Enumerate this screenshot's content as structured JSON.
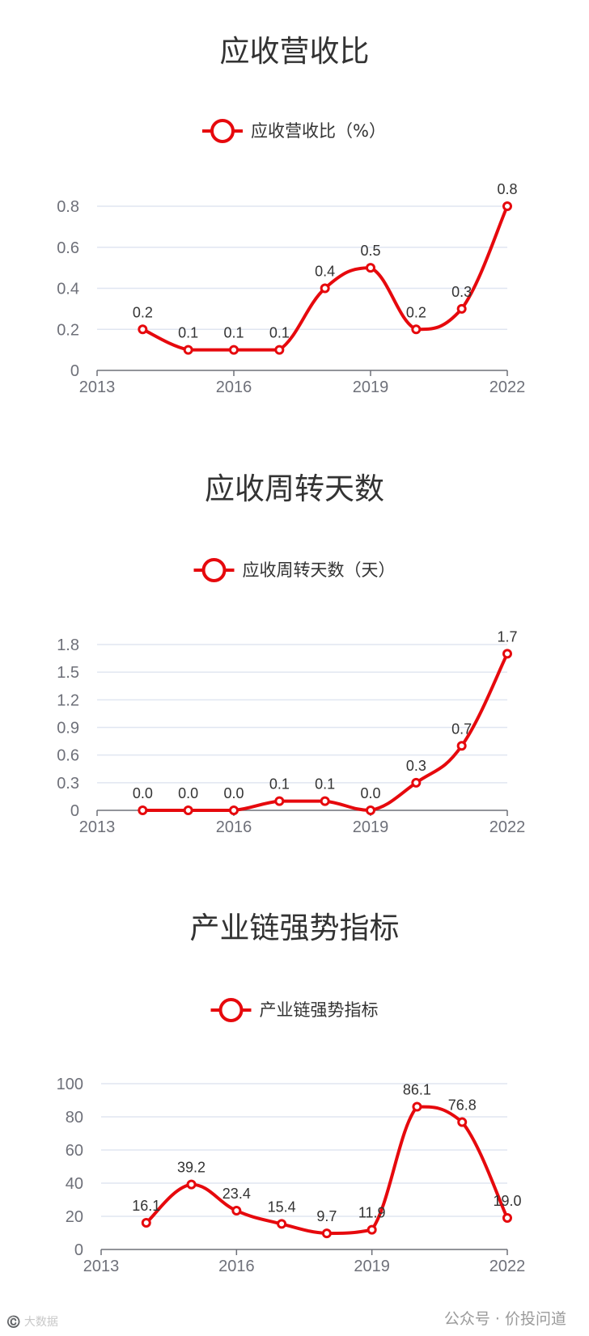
{
  "colors": {
    "series": "#e6090d",
    "grid": "#e0e6f1",
    "axis": "#6e7079",
    "text": "#333333"
  },
  "chart_data": [
    {
      "type": "line",
      "title": "应收营收比",
      "x": [
        2014,
        2015,
        2016,
        2017,
        2018,
        2019,
        2020,
        2021,
        2022
      ],
      "xticks": [
        "2013",
        "2016",
        "2019",
        "2022"
      ],
      "xlim": [
        2013,
        2022
      ],
      "yticks": [
        "0",
        "0.2",
        "0.4",
        "0.6",
        "0.8"
      ],
      "ylim": [
        0,
        0.8
      ],
      "series": [
        {
          "name": "应收营收比（%）",
          "values": [
            0.2,
            0.1,
            0.1,
            0.1,
            0.4,
            0.5,
            0.2,
            0.3,
            0.8
          ],
          "labels": [
            "0.2",
            "0.1",
            "0.1",
            "0.1",
            "0.4",
            "0.5",
            "0.2",
            "0.3",
            "0.8"
          ]
        }
      ],
      "legend": "top-center",
      "grid": true,
      "smooth": true
    },
    {
      "type": "line",
      "title": "应收周转天数",
      "x": [
        2014,
        2015,
        2016,
        2017,
        2018,
        2019,
        2020,
        2021,
        2022
      ],
      "xticks": [
        "2013",
        "2016",
        "2019",
        "2022"
      ],
      "xlim": [
        2013,
        2022
      ],
      "yticks": [
        "0",
        "0.3",
        "0.6",
        "0.9",
        "1.2",
        "1.5",
        "1.8"
      ],
      "ylim": [
        0,
        1.8
      ],
      "series": [
        {
          "name": "应收周转天数（天）",
          "values": [
            0.0,
            0.0,
            0.0,
            0.1,
            0.1,
            0.0,
            0.3,
            0.7,
            1.7
          ],
          "labels": [
            "0.0",
            "0.0",
            "0.0",
            "0.1",
            "0.1",
            "0.0",
            "0.3",
            "0.7",
            "1.7"
          ]
        }
      ],
      "legend": "top-center",
      "grid": true,
      "smooth": true
    },
    {
      "type": "line",
      "title": "产业链强势指标",
      "x": [
        2014,
        2015,
        2016,
        2017,
        2018,
        2019,
        2020,
        2021,
        2022
      ],
      "xticks": [
        "2013",
        "2016",
        "2019",
        "2022"
      ],
      "xlim": [
        2013,
        2022
      ],
      "yticks": [
        "0",
        "20",
        "40",
        "60",
        "80",
        "100"
      ],
      "ylim": [
        0,
        100
      ],
      "series": [
        {
          "name": "产业链强势指标",
          "values": [
            16.1,
            39.2,
            23.4,
            15.4,
            9.7,
            11.9,
            86.1,
            76.8,
            19.0
          ],
          "labels": [
            "16.1",
            "39.2",
            "23.4",
            "15.4",
            "9.7",
            "11.9",
            "86.1",
            "76.8",
            "19.0"
          ]
        }
      ],
      "legend": "top-center",
      "grid": true,
      "smooth": true
    }
  ],
  "watermark": {
    "left": "©️ 大数据",
    "right": "公众号 · 价投问道"
  }
}
